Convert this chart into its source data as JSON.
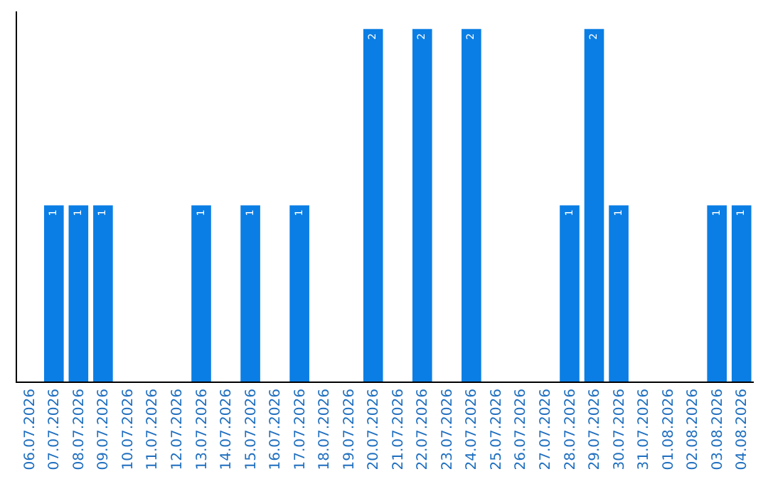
{
  "chart_data": {
    "type": "bar",
    "categories": [
      "06.07.2026",
      "07.07.2026",
      "08.07.2026",
      "09.07.2026",
      "10.07.2026",
      "11.07.2026",
      "12.07.2026",
      "13.07.2026",
      "14.07.2026",
      "15.07.2026",
      "16.07.2026",
      "17.07.2026",
      "18.07.2026",
      "19.07.2026",
      "20.07.2026",
      "21.07.2026",
      "22.07.2026",
      "23.07.2026",
      "24.07.2026",
      "25.07.2026",
      "26.07.2026",
      "27.07.2026",
      "28.07.2026",
      "29.07.2026",
      "30.07.2026",
      "31.07.2026",
      "01.08.2026",
      "02.08.2026",
      "03.08.2026",
      "04.08.2026"
    ],
    "values": [
      0,
      1,
      1,
      1,
      0,
      0,
      0,
      1,
      0,
      1,
      0,
      1,
      0,
      0,
      2,
      0,
      2,
      0,
      2,
      0,
      0,
      0,
      1,
      2,
      1,
      0,
      0,
      0,
      1,
      1
    ],
    "value_labels": [
      null,
      "1",
      "1",
      "1",
      null,
      null,
      null,
      "1",
      null,
      "1",
      null,
      "1",
      null,
      null,
      "2",
      null,
      "2",
      null,
      "2",
      null,
      null,
      null,
      "1",
      "2",
      "1",
      null,
      null,
      null,
      "1",
      "1"
    ],
    "color": "#0a7ee4",
    "ylim": [
      0,
      2.1
    ],
    "tick_labels": "x"
  }
}
